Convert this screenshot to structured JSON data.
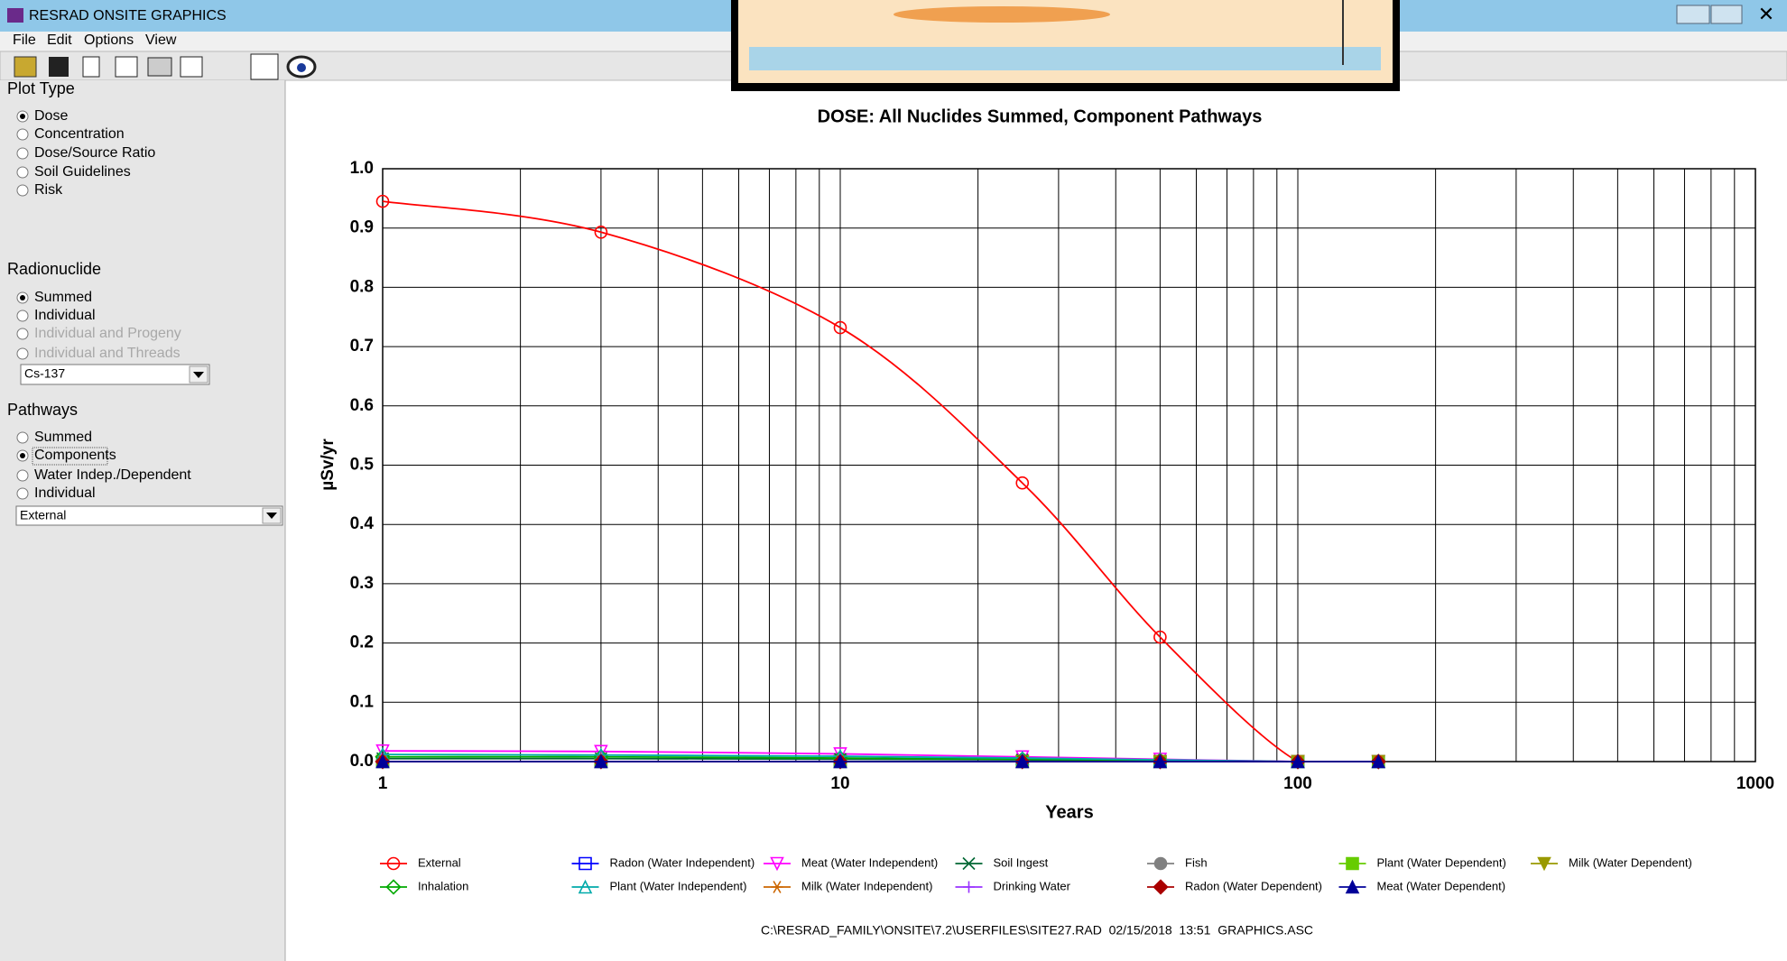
{
  "window": {
    "title": "RESRAD ONSITE GRAPHICS"
  },
  "menu": [
    "File",
    "Edit",
    "Options",
    "View"
  ],
  "sidebar": {
    "plot_type": {
      "label": "Plot Type",
      "options": [
        "Dose",
        "Concentration",
        "Dose/Source Ratio",
        "Soil Guidelines",
        "Risk"
      ]
    },
    "radionuclide": {
      "label": "Radionuclide",
      "options": [
        "Summed",
        "Individual",
        "Individual and Progeny",
        "Individual and Threads"
      ],
      "dropdown": "Cs-137"
    },
    "pathways": {
      "label": "Pathways",
      "options": [
        "Summed",
        "Components",
        "Water Indep./Dependent",
        "Individual"
      ],
      "dropdown": "External"
    }
  },
  "chart_data": {
    "type": "line",
    "title": "DOSE: All Nuclides Summed, Component Pathways",
    "x_label": "Years",
    "y_label": "µSv/yr",
    "xscale": "log",
    "grid": true,
    "xlim": [
      1,
      1000
    ],
    "xticks": [
      1,
      10,
      100,
      1000
    ],
    "xminorticks": [
      2,
      3,
      4,
      5,
      6,
      7,
      8,
      9,
      20,
      30,
      40,
      50,
      60,
      70,
      80,
      90,
      200,
      300,
      400,
      500,
      600,
      700,
      800,
      900
    ],
    "ylim": [
      0,
      1
    ],
    "yticks": [
      {
        "value": 0,
        "label": "0.0"
      },
      0.1,
      0.2,
      0.3,
      0.4,
      0.5,
      0.6,
      0.7,
      0.8,
      0.9,
      {
        "value": 1,
        "label": "1.0"
      }
    ],
    "x": [
      1,
      3,
      10,
      25,
      50,
      100,
      150
    ],
    "series": [
      {
        "name": "External",
        "color": "#ff0000",
        "marker": "circle",
        "values": [
          0.945,
          0.893,
          0.732,
          0.47,
          0.21,
          0,
          0
        ]
      },
      {
        "name": "Radon (Water Independent)",
        "color": "#0000ff",
        "marker": "square",
        "values": [
          0,
          0,
          0,
          0,
          0,
          0,
          0
        ]
      },
      {
        "name": "Meat (Water Independent)",
        "color": "#ff00ff",
        "marker": "triangle-down",
        "values": [
          0.018,
          0.017,
          0.013,
          0.008,
          0.004,
          0,
          0
        ]
      },
      {
        "name": "Soil Ingest",
        "color": "#006633",
        "marker": "x",
        "values": [
          0.005,
          0.005,
          0.004,
          0.003,
          0.001,
          0,
          0
        ]
      },
      {
        "name": "Fish",
        "color": "#808080",
        "marker": "circle-filled",
        "values": [
          0,
          0,
          0,
          0,
          0,
          0,
          0
        ]
      },
      {
        "name": "Plant (Water Dependent)",
        "color": "#66cc00",
        "marker": "square-filled",
        "values": [
          0,
          0,
          0,
          0,
          0,
          0,
          0
        ]
      },
      {
        "name": "Milk (Water Dependent)",
        "color": "#999900",
        "marker": "triangle-down-filled",
        "values": [
          0,
          0,
          0,
          0,
          0,
          0,
          0
        ]
      },
      {
        "name": "Inhalation",
        "color": "#00aa00",
        "marker": "diamond",
        "values": [
          0.008,
          0.008,
          0.006,
          0.004,
          0.002,
          0,
          0
        ]
      },
      {
        "name": "Plant (Water Independent)",
        "color": "#00aaaa",
        "marker": "triangle-up",
        "values": [
          0.012,
          0.011,
          0.009,
          0.006,
          0.003,
          0,
          0
        ]
      },
      {
        "name": "Milk (Water Independent)",
        "color": "#cc6600",
        "marker": "asterisk",
        "values": [
          0,
          0,
          0,
          0,
          0,
          0,
          0
        ]
      },
      {
        "name": "Drinking Water",
        "color": "#9933ff",
        "marker": "plus",
        "values": [
          0,
          0,
          0,
          0,
          0,
          0,
          0
        ]
      },
      {
        "name": "Radon (Water Dependent)",
        "color": "#aa0000",
        "marker": "diamond-filled",
        "values": [
          0,
          0,
          0,
          0,
          0,
          0,
          0
        ]
      },
      {
        "name": "Meat (Water Dependent)",
        "color": "#000099",
        "marker": "triangle-up-filled",
        "values": [
          0,
          0,
          0,
          0,
          0,
          0,
          0
        ]
      }
    ],
    "footnote": "C:\\RESRAD_FAMILY\\ONSITE\\7.2\\USERFILES\\SITE27.RAD  02/15/2018  13:51  GRAPHICS.ASC"
  }
}
